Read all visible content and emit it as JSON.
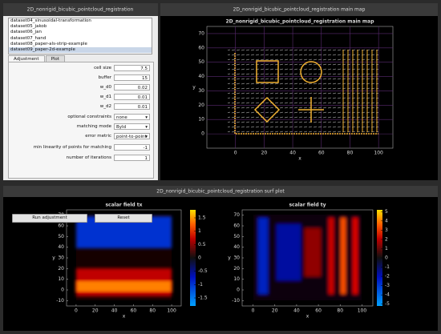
{
  "main_window": {
    "title": "2D_nonrigid_bicubic_pointcloud_registration",
    "datasets": [
      "dataset04_sinusoidal-transformation",
      "dataset05_jakob",
      "dataset06_jan",
      "dataset07_hand",
      "dataset08_paper-als-strip-example",
      "dataset09_paper-2d-example"
    ],
    "tabs": [
      "Adjustment",
      "Plot"
    ],
    "fields": [
      {
        "label": "cell size",
        "value": 7.5
      },
      {
        "label": "buffer",
        "value": 15
      },
      {
        "label": "w_d0",
        "value": 0.02
      },
      {
        "label": "w_d1",
        "value": 0.01
      },
      {
        "label": "w_d2",
        "value": 0.01
      },
      {
        "label": "optional constraints",
        "value": "none"
      },
      {
        "label": "matching mode",
        "value": "ById"
      },
      {
        "label": "error metric",
        "value": "point-to-point"
      },
      {
        "label": "min linearity of points for matching",
        "value": -1
      },
      {
        "label": "number of iterations",
        "value": 1
      }
    ],
    "buttons": [
      "Run adjustment",
      "Reset"
    ]
  },
  "map_window": {
    "title": "2D_nonrigid_bicubic_pointcloud_registration main map",
    "xlabel": "x",
    "ylabel": "y",
    "xlim": [
      -20,
      110
    ],
    "ylim": [
      -10,
      75
    ],
    "xticks": [
      0,
      20,
      40,
      60,
      80,
      100
    ],
    "yticks": [
      0,
      10,
      20,
      30,
      40,
      50,
      60,
      70
    ]
  },
  "surf_window": {
    "title": "2D_nonrigid_bicubic_pointcloud_registration surf plot",
    "plots": [
      {
        "title": "scalar field tx",
        "xlabel": "x",
        "ylabel": "y",
        "xlim": [
          -10,
          110
        ],
        "ylim": [
          -15,
          75
        ],
        "xticks": [
          0,
          20,
          40,
          60,
          80,
          100
        ],
        "yticks": [
          -10,
          0,
          10,
          20,
          30,
          40,
          50,
          60,
          70
        ],
        "clim": [
          -1.8,
          1.8
        ],
        "cticks": [
          -1.5,
          -1,
          -0.5,
          0,
          0.5,
          1,
          1.5
        ]
      },
      {
        "title": "scalar field ty",
        "xlabel": "x",
        "ylabel": "y",
        "xlim": [
          -10,
          110
        ],
        "ylim": [
          -15,
          75
        ],
        "xticks": [
          0,
          20,
          40,
          60,
          80,
          100
        ],
        "yticks": [
          -10,
          0,
          10,
          20,
          30,
          40,
          50,
          60,
          70
        ],
        "clim": [
          -5.2,
          5.2
        ],
        "cticks": [
          -5,
          -4,
          -3,
          -2,
          -1,
          0,
          1,
          2,
          3,
          4,
          5
        ]
      }
    ]
  }
}
